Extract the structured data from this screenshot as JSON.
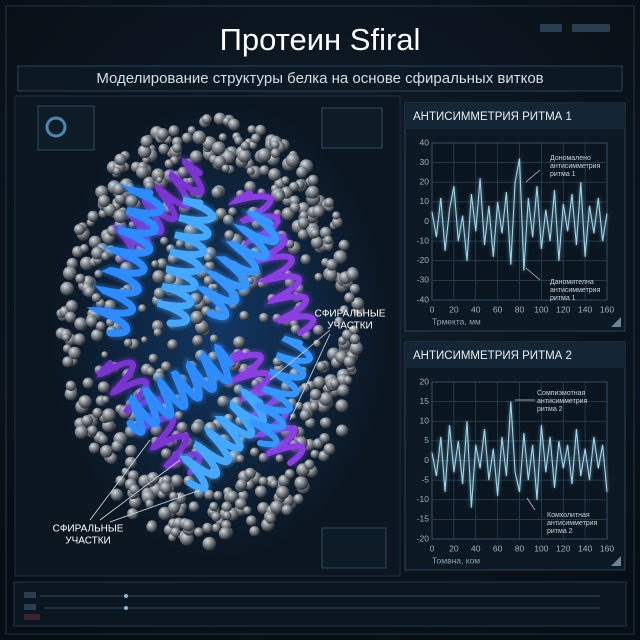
{
  "header": {
    "title": "Протеин Sfiral",
    "subtitle": "Моделирование структуры белка на основе сфиральных витков"
  },
  "protein": {
    "labels": [
      {
        "lines": [
          "СФИРАЛЬНЫЕ",
          "УЧАСТКИ"
        ]
      },
      {
        "lines": [
          "СФИРАЛЬНЫЕ",
          "УЧАСТКИ"
        ]
      }
    ]
  },
  "charts": [
    {
      "type": "line",
      "title": "АНТИСИММЕТРИЯ РИТМА 1",
      "x_label": "Трмекта, мм",
      "color": "#9fd6ee",
      "xlim": [
        0,
        160
      ],
      "xticks": [
        0,
        20,
        40,
        60,
        80,
        100,
        120,
        140,
        160
      ],
      "ylim": [
        -40,
        40
      ],
      "yticks": [
        40,
        30,
        20,
        10,
        0,
        -10,
        -20,
        -30,
        -40
      ],
      "grid": true,
      "x": [
        0,
        4,
        8,
        12,
        16,
        20,
        24,
        28,
        32,
        36,
        40,
        44,
        48,
        52,
        56,
        60,
        64,
        68,
        72,
        76,
        80,
        84,
        88,
        92,
        96,
        100,
        104,
        108,
        112,
        116,
        120,
        124,
        128,
        132,
        136,
        140,
        144,
        148,
        152,
        156,
        160
      ],
      "values": [
        5,
        -8,
        12,
        -15,
        6,
        18,
        -10,
        3,
        -20,
        14,
        -5,
        22,
        -12,
        8,
        -18,
        10,
        -6,
        15,
        -22,
        20,
        32,
        -25,
        12,
        -8,
        18,
        -14,
        6,
        -10,
        16,
        -20,
        9,
        -5,
        14,
        -12,
        20,
        -18,
        8,
        -6,
        12,
        -10,
        4
      ],
      "annotations": [
        {
          "lines": [
            "Дономалено",
            "антисимметрия",
            "ритма 1"
          ]
        },
        {
          "lines": [
            "Даномителна",
            "антисимметрия",
            "ритма 1"
          ]
        }
      ]
    },
    {
      "type": "line",
      "title": "АНТИСИММЕТРИЯ РИТМА 2",
      "x_label": "Томвна, ком",
      "color": "#9fd6ee",
      "xlim": [
        0,
        160
      ],
      "xticks": [
        0,
        20,
        40,
        60,
        80,
        100,
        120,
        140,
        160
      ],
      "ylim": [
        -20,
        20
      ],
      "yticks": [
        20,
        15,
        10,
        5,
        0,
        -5,
        -10,
        -15,
        -20
      ],
      "grid": true,
      "x": [
        0,
        4,
        8,
        12,
        16,
        20,
        24,
        28,
        32,
        36,
        40,
        44,
        48,
        52,
        56,
        60,
        64,
        68,
        72,
        76,
        80,
        84,
        88,
        92,
        96,
        100,
        104,
        108,
        112,
        116,
        120,
        124,
        128,
        132,
        136,
        140,
        144,
        148,
        152,
        156,
        160
      ],
      "values": [
        2,
        -4,
        6,
        -8,
        9,
        -3,
        5,
        -6,
        10,
        -12,
        4,
        -2,
        8,
        -5,
        3,
        -9,
        6,
        -4,
        15,
        -3,
        -8,
        7,
        -5,
        4,
        -10,
        9,
        -3,
        6,
        -7,
        5,
        -2,
        4,
        -6,
        8,
        -4,
        3,
        -5,
        6,
        -2,
        4,
        -8
      ],
      "annotations": [
        {
          "lines": [
            "Сомпиэмотная",
            "антисимметрия",
            "ритма 2"
          ]
        },
        {
          "lines": [
            "Комхолитная",
            "антисимметрия",
            "ритма 2"
          ]
        }
      ]
    }
  ]
}
